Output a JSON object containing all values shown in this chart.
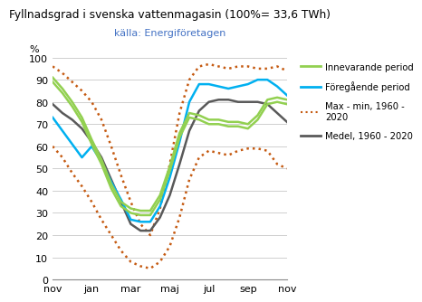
{
  "title": "Fyllnadsgrad i svenska vattenmagasin (100%= 33,6 TWh)",
  "subtitle": "källa: Energiföretagen",
  "ylabel": "%",
  "ylim": [
    0,
    100
  ],
  "yticks": [
    0,
    10,
    20,
    30,
    40,
    50,
    60,
    70,
    80,
    90,
    100
  ],
  "x_labels": [
    "nov",
    "jan",
    "mar",
    "maj",
    "jul",
    "sep",
    "nov"
  ],
  "x_positions": [
    0,
    2,
    4,
    6,
    8,
    10,
    12
  ],
  "background_color": "#ffffff",
  "medel_color": "#595959",
  "innevarande_color": "#92d050",
  "foregaende_color": "#00b0f0",
  "max_min_color": "#c55a11",
  "legend_entries": [
    "Innevarande period",
    "Föregående period",
    "Max - min, 1960 -\n2020",
    "Medel, 1960 - 2020"
  ],
  "medel": {
    "x": [
      0,
      0.5,
      1,
      1.5,
      2,
      2.5,
      3,
      3.5,
      4,
      4.5,
      5,
      5.5,
      6,
      6.5,
      7,
      7.5,
      8,
      8.5,
      9,
      9.5,
      10,
      10.5,
      11,
      11.5,
      12
    ],
    "y": [
      79,
      75,
      72,
      68,
      62,
      55,
      45,
      35,
      25,
      22,
      22,
      28,
      38,
      52,
      67,
      76,
      80,
      81,
      81,
      80,
      80,
      80,
      79,
      75,
      71
    ]
  },
  "max_upper": {
    "x": [
      0,
      0.5,
      1,
      1.5,
      2,
      2.5,
      3,
      3.5,
      4,
      4.5,
      5,
      5.5,
      6,
      6.5,
      7,
      7.5,
      8,
      8.5,
      9,
      9.5,
      10,
      10.5,
      11,
      11.5,
      12
    ],
    "y": [
      96,
      93,
      89,
      85,
      80,
      72,
      60,
      47,
      35,
      25,
      20,
      32,
      52,
      75,
      90,
      96,
      97,
      96,
      95,
      96,
      96,
      95,
      95,
      96,
      94
    ]
  },
  "max_lower": {
    "x": [
      0,
      0.5,
      1,
      1.5,
      2,
      2.5,
      3,
      3.5,
      4,
      4.5,
      5,
      5.5,
      6,
      6.5,
      7,
      7.5,
      8,
      8.5,
      9,
      9.5,
      10,
      10.5,
      11,
      11.5,
      12
    ],
    "y": [
      60,
      55,
      48,
      42,
      35,
      27,
      20,
      13,
      8,
      6,
      5,
      8,
      15,
      28,
      45,
      55,
      58,
      57,
      56,
      58,
      59,
      59,
      58,
      52,
      50
    ]
  },
  "innevarande_1": {
    "x": [
      0,
      0.5,
      1,
      1.5,
      2,
      2.5,
      3,
      3.5,
      4,
      4.5,
      5,
      5.5,
      6,
      6.5,
      7,
      7.5,
      8,
      8.5,
      9,
      9.5,
      10,
      10.5,
      11,
      11.5,
      12
    ],
    "y": [
      91,
      86,
      80,
      73,
      63,
      54,
      43,
      35,
      32,
      31,
      31,
      38,
      51,
      66,
      75,
      74,
      72,
      72,
      71,
      71,
      70,
      74,
      81,
      82,
      81
    ]
  },
  "innevarande_2": {
    "x": [
      0,
      0.5,
      1,
      1.5,
      2,
      2.5,
      3,
      3.5,
      4,
      4.5,
      5,
      5.5,
      6,
      6.5,
      7,
      7.5,
      8,
      8.5,
      9,
      9.5,
      10,
      10.5,
      11,
      11.5,
      12
    ],
    "y": [
      89,
      84,
      78,
      71,
      61,
      52,
      41,
      33,
      30,
      29,
      29,
      36,
      49,
      64,
      73,
      72,
      70,
      70,
      69,
      69,
      68,
      72,
      79,
      80,
      79
    ]
  },
  "foregaende": {
    "x": [
      0,
      0.5,
      1,
      1.5,
      2,
      2.5,
      3,
      3.5,
      4,
      4.5,
      5,
      5.5,
      6,
      6.5,
      7,
      7.5,
      8,
      8.5,
      9,
      9.5,
      10,
      10.5,
      11,
      11.5,
      12
    ],
    "y": [
      73,
      67,
      61,
      55,
      60,
      53,
      44,
      36,
      27,
      26,
      26,
      33,
      46,
      62,
      80,
      88,
      88,
      87,
      86,
      87,
      88,
      90,
      90,
      87,
      83
    ]
  }
}
